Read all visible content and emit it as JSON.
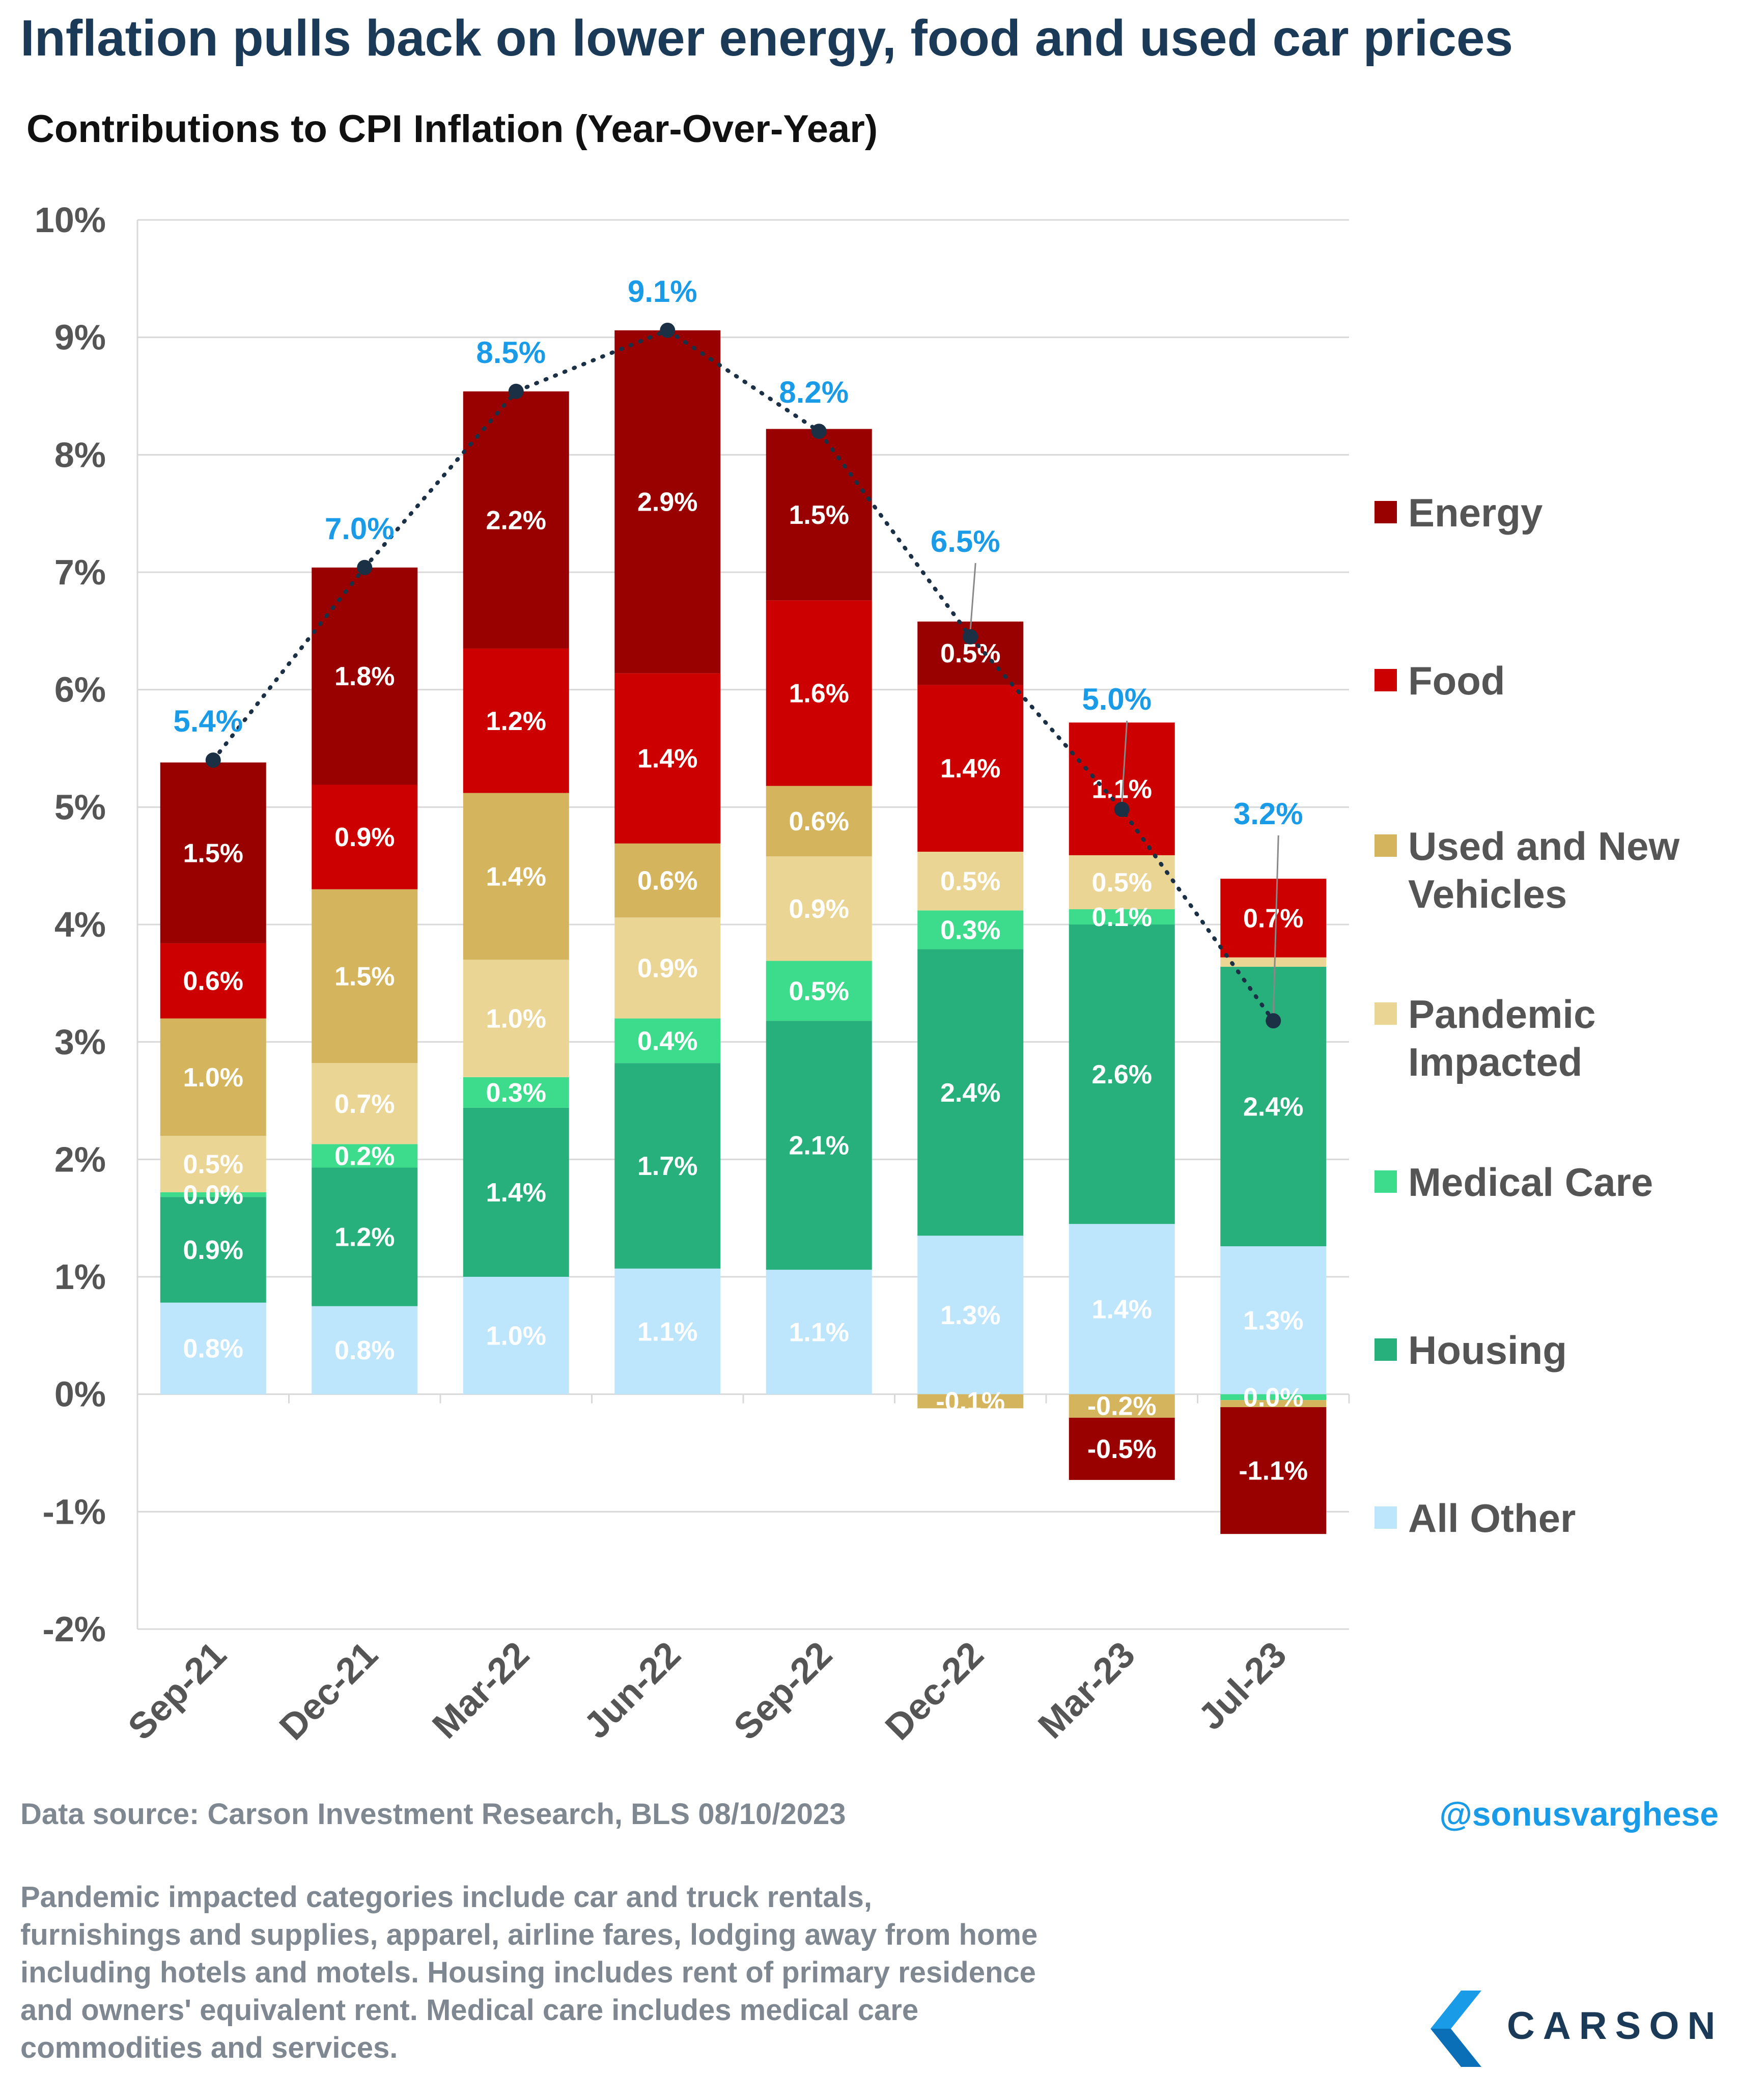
{
  "title": "Inflation pulls back on lower energy, food and used car prices",
  "subtitle": "Contributions to CPI Inflation (Year-Over-Year)",
  "source": "Data source: Carson Investment Research, BLS   08/10/2023",
  "handle": "@sonusvarghese",
  "note": "Pandemic impacted categories include car and truck rentals, furnishings and supplies, apparel, airline fares, lodging away from home including hotels and motels. Housing includes rent of primary residence and owners' equivalent rent. Medical care includes medical care commodities and services.",
  "logo": {
    "text": "CARSON",
    "mark": "carson-chevron-logo"
  },
  "colors": {
    "energy": "#990000",
    "food": "#cc0000",
    "vehicles": "#d4b45c",
    "pandemic": "#ead595",
    "medical": "#3ddc8c",
    "housing": "#27b07c",
    "other": "#bde5fb",
    "total_label": "#1a9be8",
    "total_line": "#1b3045",
    "axis_text": "#555555",
    "grid": "#d9d9d9"
  },
  "chart_data": {
    "type": "bar",
    "stacked": true,
    "categories": [
      "Sep-21",
      "Dec-21",
      "Mar-22",
      "Jun-22",
      "Sep-22",
      "Dec-22",
      "Mar-23",
      "Jul-23"
    ],
    "ylim": [
      -2,
      10
    ],
    "yticks": [
      "-2%",
      "-1%",
      "0%",
      "1%",
      "2%",
      "3%",
      "4%",
      "5%",
      "6%",
      "7%",
      "8%",
      "9%",
      "10%"
    ],
    "grid": true,
    "legend_position": "right",
    "stack_order": [
      "All Other",
      "Housing",
      "Medical Care",
      "Pandemic Impacted",
      "Used and New Vehicles",
      "Food",
      "Energy"
    ],
    "series": [
      {
        "name": "All Other",
        "color_key": "other",
        "values": [
          0.78,
          0.75,
          1.0,
          1.07,
          1.06,
          1.35,
          1.45,
          1.26
        ],
        "labels": [
          "0.8%",
          "0.8%",
          "1.0%",
          "1.1%",
          "1.1%",
          "1.3%",
          "1.4%",
          "1.3%"
        ]
      },
      {
        "name": "Housing",
        "color_key": "housing",
        "values": [
          0.9,
          1.18,
          1.44,
          1.75,
          2.12,
          2.44,
          2.55,
          2.38
        ],
        "labels": [
          "0.9%",
          "1.2%",
          "1.4%",
          "1.7%",
          "2.1%",
          "2.4%",
          "2.6%",
          "2.4%"
        ]
      },
      {
        "name": "Medical Care",
        "color_key": "medical",
        "values": [
          0.04,
          0.2,
          0.26,
          0.38,
          0.51,
          0.33,
          0.13,
          -0.05
        ],
        "labels": [
          "0.0%",
          "0.2%",
          "0.3%",
          "0.4%",
          "0.5%",
          "0.3%",
          "0.1%",
          "0.0%"
        ]
      },
      {
        "name": "Pandemic Impacted",
        "color_key": "pandemic",
        "values": [
          0.48,
          0.69,
          1.0,
          0.86,
          0.89,
          0.5,
          0.46,
          0.08
        ],
        "labels": [
          "0.5%",
          "0.7%",
          "1.0%",
          "0.9%",
          "0.9%",
          "0.5%",
          "0.5%",
          ""
        ]
      },
      {
        "name": "Used and New Vehicles",
        "color_key": "vehicles",
        "values": [
          1.0,
          1.48,
          1.42,
          0.63,
          0.6,
          -0.12,
          -0.2,
          -0.06
        ],
        "labels": [
          "1.0%",
          "1.5%",
          "1.4%",
          "0.6%",
          "0.6%",
          "-0.1%",
          "-0.2%",
          ""
        ]
      },
      {
        "name": "Food",
        "color_key": "food",
        "values": [
          0.64,
          0.89,
          1.23,
          1.45,
          1.58,
          1.42,
          1.13,
          0.67
        ],
        "labels": [
          "0.6%",
          "0.9%",
          "1.2%",
          "1.4%",
          "1.6%",
          "1.4%",
          "1.1%",
          "0.7%"
        ]
      },
      {
        "name": "Energy",
        "color_key": "energy",
        "values": [
          1.54,
          1.85,
          2.19,
          2.92,
          1.46,
          0.54,
          -0.53,
          -1.08
        ],
        "labels": [
          "1.5%",
          "1.8%",
          "2.2%",
          "2.9%",
          "1.5%",
          "0.5%",
          "-0.5%",
          "-1.1%"
        ]
      }
    ],
    "total": {
      "values": [
        5.4,
        7.04,
        8.54,
        9.06,
        8.2,
        6.45,
        4.98,
        3.18
      ],
      "labels": [
        "5.4%",
        "7.0%",
        "8.5%",
        "9.1%",
        "8.2%",
        "6.5%",
        "5.0%",
        "3.2%"
      ]
    },
    "legend": [
      {
        "name": "Energy",
        "color_key": "energy"
      },
      {
        "name": "Food",
        "color_key": "food"
      },
      {
        "name": "Used and New Vehicles",
        "color_key": "vehicles"
      },
      {
        "name": "Pandemic Impacted",
        "color_key": "pandemic"
      },
      {
        "name": "Medical Care",
        "color_key": "medical"
      },
      {
        "name": "Housing",
        "color_key": "housing"
      },
      {
        "name": "All Other",
        "color_key": "other"
      }
    ]
  }
}
